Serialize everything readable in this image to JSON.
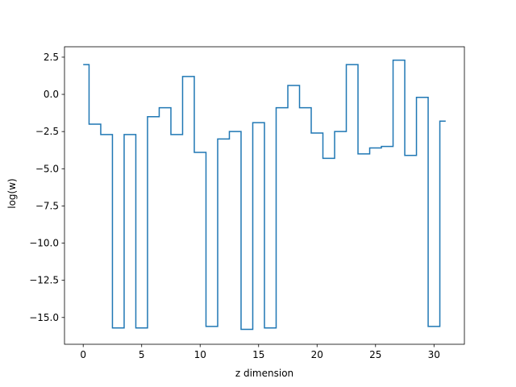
{
  "chart_data": {
    "type": "line",
    "drawstyle": "steps-mid",
    "title": "",
    "xlabel": "z dimension",
    "ylabel": "log(w)",
    "xlim": [
      -1.6,
      32.6
    ],
    "ylim": [
      -16.8,
      3.2
    ],
    "xticks": [
      0,
      5,
      10,
      15,
      20,
      25,
      30
    ],
    "xtick_labels": [
      "0",
      "5",
      "10",
      "15",
      "20",
      "25",
      "30"
    ],
    "yticks": [
      2.5,
      0.0,
      -2.5,
      -5.0,
      -7.5,
      -10.0,
      -12.5,
      -15.0
    ],
    "ytick_labels": [
      "2.5",
      "0.0",
      "−2.5",
      "−5.0",
      "−7.5",
      "−10.0",
      "−12.5",
      "−15.0"
    ],
    "grid": false,
    "legend": "none",
    "series": [
      {
        "color": "#1f77b4",
        "x": [
          0,
          1,
          2,
          3,
          4,
          5,
          6,
          7,
          8,
          9,
          10,
          11,
          12,
          13,
          14,
          15,
          16,
          17,
          18,
          19,
          20,
          21,
          22,
          23,
          24,
          25,
          26,
          27,
          28,
          29,
          30,
          31
        ],
        "y": [
          2.0,
          -2.0,
          -2.7,
          -15.7,
          -2.7,
          -15.7,
          -1.5,
          -0.9,
          -2.7,
          1.2,
          -3.9,
          -15.6,
          -3.0,
          -2.5,
          -15.8,
          -1.9,
          -15.7,
          -0.9,
          0.6,
          -0.9,
          -2.6,
          -4.3,
          -2.5,
          2.0,
          -4.0,
          -3.6,
          -3.5,
          2.3,
          -4.1,
          -0.2,
          -15.6,
          -1.8
        ]
      }
    ]
  }
}
